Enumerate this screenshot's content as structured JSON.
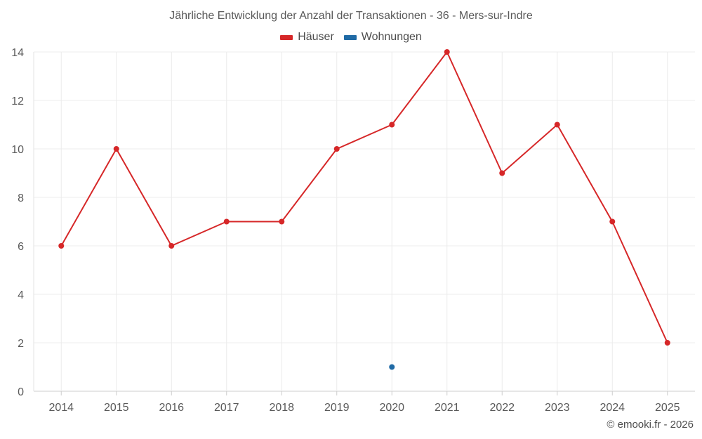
{
  "chart_data": {
    "type": "line",
    "title": "Jährliche Entwicklung der Anzahl der Transaktionen - 36 - Mers-sur-Indre",
    "xlabel": "",
    "ylabel": "",
    "categories": [
      "2014",
      "2015",
      "2016",
      "2017",
      "2018",
      "2019",
      "2020",
      "2021",
      "2022",
      "2023",
      "2024",
      "2025"
    ],
    "ylim": [
      0,
      14
    ],
    "yticks": [
      0,
      2,
      4,
      6,
      8,
      10,
      12,
      14
    ],
    "grid": true,
    "legend_position": "top-center",
    "series": [
      {
        "name": "Häuser",
        "color": "#d62728",
        "values": [
          6,
          10,
          6,
          7,
          7,
          10,
          11,
          14,
          9,
          11,
          7,
          2
        ]
      },
      {
        "name": "Wohnungen",
        "color": "#1f6aa5",
        "values": [
          null,
          null,
          null,
          null,
          null,
          null,
          1,
          null,
          null,
          null,
          null,
          null
        ]
      }
    ]
  },
  "footer": {
    "credit": "© emooki.fr - 2026"
  }
}
